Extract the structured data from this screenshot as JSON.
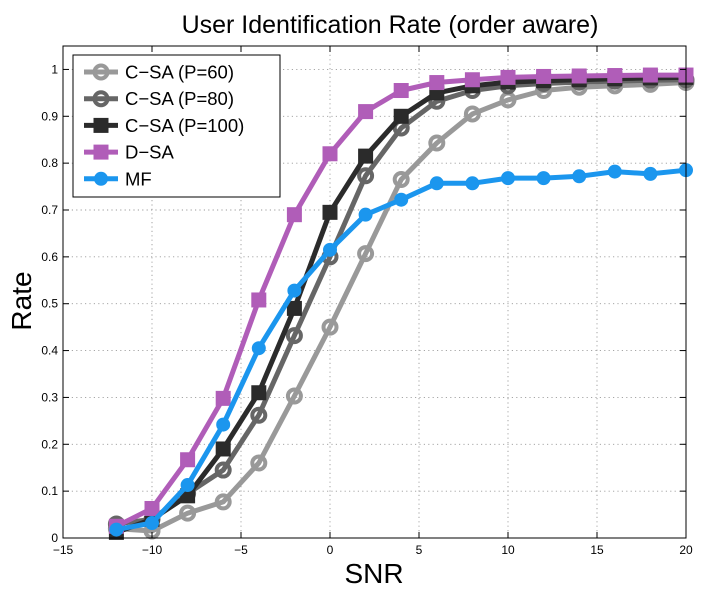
{
  "chart_data": {
    "type": "line",
    "title": "User Identification Rate (order aware)",
    "xlabel": "SNR",
    "ylabel": "Rate",
    "xlim": [
      -15,
      20
    ],
    "ylim": [
      0,
      1.05
    ],
    "xticks": [
      -15,
      -10,
      -5,
      0,
      5,
      10,
      15,
      20
    ],
    "yticks": [
      0,
      0.1,
      0.2,
      0.3,
      0.4,
      0.5,
      0.6,
      0.7,
      0.8,
      0.9,
      1
    ],
    "ytick_labels": [
      "0",
      "0.1",
      "0.2",
      "0.3",
      "0.4",
      "0.5",
      "0.6",
      "0.7",
      "0.8",
      "0.9",
      "1"
    ],
    "grid": true,
    "legend_position": "top-left",
    "x": [
      -12,
      -10,
      -8,
      -6,
      -4,
      -2,
      0,
      2,
      4,
      6,
      8,
      10,
      12,
      14,
      16,
      18,
      20
    ],
    "series": [
      {
        "name": "C−SA (P=60)",
        "color": "#999999",
        "marker": "circle-open",
        "values": [
          0.02,
          0.015,
          0.053,
          0.077,
          0.16,
          0.303,
          0.45,
          0.607,
          0.765,
          0.843,
          0.905,
          0.935,
          0.955,
          0.962,
          0.965,
          0.968,
          0.972
        ]
      },
      {
        "name": "C−SA (P=80)",
        "color": "#666666",
        "marker": "circle-open",
        "values": [
          0.03,
          0.04,
          0.095,
          0.145,
          0.262,
          0.432,
          0.6,
          0.773,
          0.875,
          0.932,
          0.955,
          0.965,
          0.97,
          0.973,
          0.975,
          0.977,
          0.978
        ]
      },
      {
        "name": "C−SA (P=100)",
        "color": "#2b2b2b",
        "marker": "square",
        "values": [
          0.012,
          0.04,
          0.09,
          0.19,
          0.31,
          0.49,
          0.695,
          0.815,
          0.9,
          0.95,
          0.965,
          0.973,
          0.976,
          0.978,
          0.98,
          0.982,
          0.983
        ]
      },
      {
        "name": "D−SA",
        "color": "#b05db8",
        "marker": "square",
        "values": [
          0.025,
          0.063,
          0.167,
          0.298,
          0.508,
          0.69,
          0.82,
          0.91,
          0.955,
          0.972,
          0.978,
          0.983,
          0.985,
          0.986,
          0.987,
          0.988,
          0.988
        ]
      },
      {
        "name": "MF",
        "color": "#1b96ee",
        "marker": "circle",
        "values": [
          0.018,
          0.032,
          0.113,
          0.242,
          0.405,
          0.528,
          0.615,
          0.69,
          0.722,
          0.757,
          0.757,
          0.768,
          0.768,
          0.772,
          0.782,
          0.777,
          0.785
        ]
      }
    ]
  }
}
